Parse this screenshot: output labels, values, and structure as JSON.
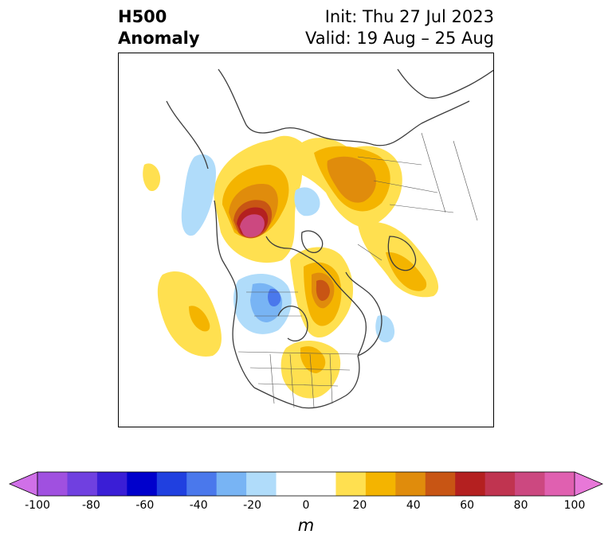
{
  "title": {
    "left_line1": "H500",
    "left_line2": "Anomaly",
    "right_line1": "Init: Thu 27 Jul 2023",
    "right_line2": "Valid: 19 Aug – 25 Aug"
  },
  "map": {
    "projection": "polar stereographic (North America / Arctic)",
    "variable": "500 hPa geopotential height anomaly",
    "features": [
      {
        "name": "positive-anomaly-alaska-beaufort",
        "sign": "positive",
        "peak_m": 80
      },
      {
        "name": "positive-anomaly-siberia-arctic",
        "sign": "positive",
        "peak_m": 50
      },
      {
        "name": "positive-anomaly-hudson-bay",
        "sign": "positive",
        "peak_m": 60
      },
      {
        "name": "positive-anomaly-northeast-pacific",
        "sign": "positive",
        "peak_m": 20
      },
      {
        "name": "positive-anomaly-eastern-us",
        "sign": "positive",
        "peak_m": 20
      },
      {
        "name": "negative-anomaly-western-canada",
        "sign": "negative",
        "peak_m": -40
      },
      {
        "name": "negative-anomaly-bering-west",
        "sign": "negative",
        "peak_m": -10
      },
      {
        "name": "negative-anomaly-arctic-ocean",
        "sign": "negative",
        "peak_m": -10
      },
      {
        "name": "negative-anomaly-northwest-atlantic",
        "sign": "negative",
        "peak_m": -10
      }
    ]
  },
  "colorbar": {
    "unit": "m",
    "ticks": [
      "-100",
      "-80",
      "-60",
      "-40",
      "-20",
      "0",
      "20",
      "40",
      "60",
      "80",
      "100"
    ],
    "min": -100,
    "max": 100,
    "step": 10,
    "colors": [
      "#a050e0",
      "#7040e0",
      "#3a1ed6",
      "#0000cc",
      "#2040e0",
      "#4a78ec",
      "#78b4f4",
      "#b0dcfa",
      "#ffffff",
      "#ffffff",
      "#ffe050",
      "#f4b400",
      "#e08c0c",
      "#c85514",
      "#b42020",
      "#c03450",
      "#cc4880",
      "#e060b0"
    ],
    "extend_low_color": "#d070e8",
    "extend_high_color": "#e878d8"
  }
}
